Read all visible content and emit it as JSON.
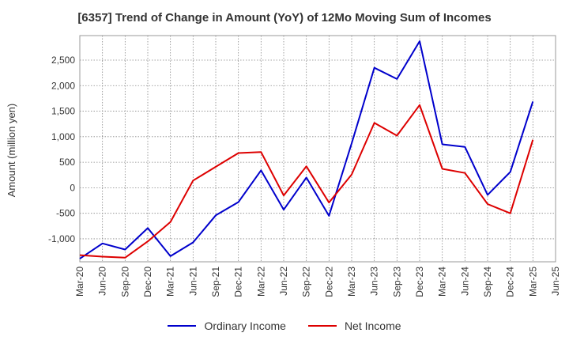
{
  "chart_data": {
    "type": "line",
    "title": "[6357]  Trend of Change in Amount (YoY) of 12Mo Moving Sum of Incomes",
    "ylabel": "Amount (million yen)",
    "xlabel": "",
    "ylim": [
      -1450,
      2980
    ],
    "yticks": [
      -1000,
      -500,
      0,
      500,
      1000,
      1500,
      2000,
      2500
    ],
    "ytick_labels": [
      "-1,000",
      "-500",
      "0",
      "500",
      "1,000",
      "1,500",
      "2,000",
      "2,500"
    ],
    "grid": true,
    "legend_position": "bottom",
    "x": [
      "Mar-20",
      "Jun-20",
      "Sep-20",
      "Dec-20",
      "Mar-21",
      "Jun-21",
      "Sep-21",
      "Dec-21",
      "Mar-22",
      "Jun-22",
      "Sep-22",
      "Dec-22",
      "Mar-23",
      "Jun-23",
      "Sep-23",
      "Dec-23",
      "Mar-24",
      "Jun-24",
      "Sep-24",
      "Dec-24",
      "Mar-25",
      "Jun-25"
    ],
    "series": [
      {
        "name": "Ordinary Income",
        "color": "#0000cc",
        "values": [
          -1390,
          -1090,
          -1210,
          -790,
          -1340,
          -1070,
          -540,
          -280,
          340,
          -430,
          200,
          -550,
          870,
          2350,
          2130,
          2870,
          850,
          800,
          -140,
          310,
          1690,
          null
        ]
      },
      {
        "name": "Net Income",
        "color": "#dd0000",
        "values": [
          -1320,
          -1350,
          -1370,
          -1050,
          -670,
          140,
          410,
          680,
          700,
          -150,
          420,
          -290,
          260,
          1270,
          1020,
          1620,
          370,
          290,
          -320,
          -500,
          940,
          null
        ]
      }
    ]
  }
}
